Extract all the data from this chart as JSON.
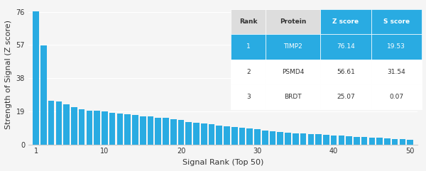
{
  "bar_color": "#29ABE2",
  "background_color": "#f5f5f5",
  "xlabel": "Signal Rank (Top 50)",
  "ylabel": "Strength of Signal (Z score)",
  "yticks": [
    0,
    19,
    38,
    57,
    76
  ],
  "xticks": [
    1,
    10,
    20,
    30,
    40,
    50
  ],
  "ylim": [
    0,
    80
  ],
  "xlim": [
    0,
    51
  ],
  "bar_values": [
    76.14,
    56.61,
    25.07,
    24.5,
    23.0,
    21.5,
    20.2,
    19.5,
    19.2,
    18.8,
    18.3,
    17.8,
    17.2,
    16.8,
    16.3,
    16.0,
    15.5,
    15.2,
    14.5,
    14.0,
    13.0,
    12.5,
    12.0,
    11.5,
    11.0,
    10.5,
    10.0,
    9.5,
    9.2,
    9.0,
    8.0,
    7.5,
    7.0,
    6.8,
    6.5,
    6.2,
    6.0,
    5.8,
    5.5,
    5.2,
    5.0,
    4.8,
    4.5,
    4.2,
    4.0,
    3.8,
    3.5,
    3.2,
    3.0,
    2.8
  ],
  "table_data": [
    [
      "1",
      "TIMP2",
      "76.14",
      "19.53"
    ],
    [
      "2",
      "PSMD4",
      "56.61",
      "31.54"
    ],
    [
      "3",
      "BRDT",
      "25.07",
      "0.07"
    ]
  ],
  "table_headers": [
    "Rank",
    "Protein",
    "Z score",
    "S score"
  ],
  "highlight_row": 0,
  "highlight_color": "#29ABE2",
  "table_text_color_highlight": "#ffffff",
  "table_text_color_normal": "#333333",
  "table_header_color": "#ffffff",
  "table_bg_color": "#ffffff",
  "table_header_bg": "#888888"
}
